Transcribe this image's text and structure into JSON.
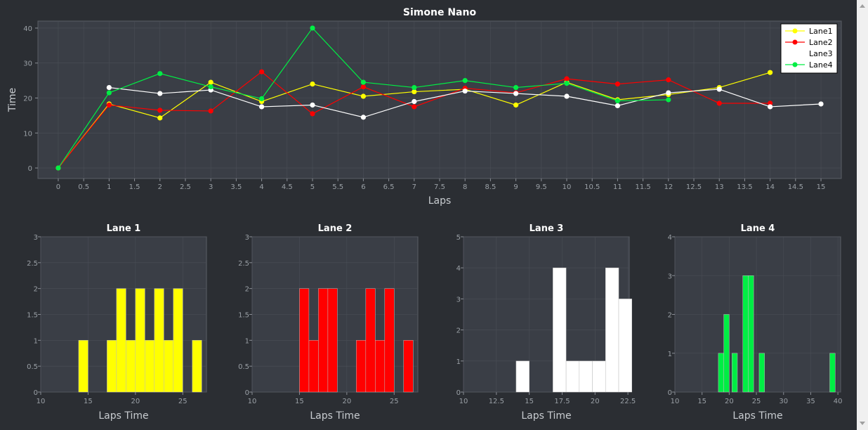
{
  "colors": {
    "background": "#2b2e33",
    "plot_area": "#3a3e46",
    "grid": "#4a4e56",
    "lane1": "#ffff00",
    "lane2": "#ff0000",
    "lane3": "#ffffff",
    "lane4": "#00ee44"
  },
  "chart_data": [
    {
      "type": "line",
      "title": "Simone Nano",
      "xlabel": "Laps",
      "ylabel": "Time",
      "xlim": [
        -0.4,
        15.4
      ],
      "ylim": [
        -3,
        42
      ],
      "grid": true,
      "legend_position": "top-right",
      "x_ticks": [
        0,
        0.5,
        1,
        1.5,
        2,
        2.5,
        3,
        3.5,
        4,
        4.5,
        5,
        5.5,
        6,
        6.5,
        7,
        7.5,
        8,
        8.5,
        9,
        9.5,
        10,
        10.5,
        11,
        11.5,
        12,
        12.5,
        13,
        13.5,
        14,
        14.5,
        15
      ],
      "y_ticks": [
        0,
        10,
        20,
        30,
        40
      ],
      "series": [
        {
          "name": "Lane1",
          "color": "#ffff00",
          "x": [
            0,
            1,
            2,
            3,
            4,
            5,
            6,
            7,
            8,
            9,
            10,
            11,
            12,
            13,
            14
          ],
          "y": [
            0,
            18.3,
            14.3,
            24.5,
            19,
            24,
            20.5,
            21.8,
            22.5,
            18,
            24.5,
            19.5,
            21,
            23,
            27.3
          ]
        },
        {
          "name": "Lane2",
          "color": "#ff0000",
          "x": [
            0,
            1,
            2,
            3,
            4,
            5,
            6,
            7,
            8,
            9,
            10,
            11,
            12,
            13,
            14
          ],
          "y": [
            0,
            18,
            16.5,
            16.3,
            27.5,
            15.5,
            23.2,
            17.5,
            22.8,
            21.5,
            25.5,
            24,
            25.2,
            18.5,
            18.5
          ]
        },
        {
          "name": "Lane3",
          "color": "#ffffff",
          "x": [
            1,
            2,
            3,
            4,
            5,
            6,
            7,
            8,
            9,
            10,
            11,
            12,
            13,
            14,
            15
          ],
          "y": [
            23,
            21.3,
            22.3,
            17.5,
            18,
            14.5,
            19,
            22,
            21.3,
            20.5,
            17.8,
            21.5,
            22.5,
            17.5,
            18.3
          ]
        },
        {
          "name": "Lane4",
          "color": "#00ee44",
          "x": [
            0,
            1,
            2,
            3,
            4,
            5,
            6,
            7,
            8,
            9,
            10,
            11,
            12
          ],
          "y": [
            0,
            21.5,
            27,
            23.2,
            19.8,
            40,
            24.5,
            23,
            25,
            23,
            24.2,
            19.2,
            19.5
          ]
        }
      ]
    },
    {
      "type": "bar",
      "title": "Lane 1",
      "xlabel": "Laps Time",
      "color": "#ffff00",
      "xlim": [
        10,
        27.5
      ],
      "ylim": [
        0,
        3
      ],
      "x_ticks": [
        10,
        15,
        20,
        25
      ],
      "y_ticks": [
        0,
        0.5,
        1,
        1.5,
        2,
        2.5,
        3
      ],
      "bins": [
        [
          14,
          15,
          1
        ],
        [
          17,
          18,
          1
        ],
        [
          18,
          19,
          2
        ],
        [
          19,
          20,
          1
        ],
        [
          20,
          21,
          2
        ],
        [
          21,
          22,
          1
        ],
        [
          22,
          23,
          2
        ],
        [
          23,
          24,
          1
        ],
        [
          24,
          25,
          2
        ],
        [
          26,
          27,
          1
        ]
      ]
    },
    {
      "type": "bar",
      "title": "Lane 2",
      "xlabel": "Laps Time",
      "color": "#ff0000",
      "xlim": [
        10,
        27.5
      ],
      "ylim": [
        0,
        3
      ],
      "x_ticks": [
        10,
        15,
        20,
        25
      ],
      "y_ticks": [
        0,
        0.5,
        1,
        1.5,
        2,
        2.5,
        3
      ],
      "bins": [
        [
          15,
          16,
          2
        ],
        [
          16,
          17,
          1
        ],
        [
          17,
          18,
          2
        ],
        [
          18,
          19,
          2
        ],
        [
          21,
          22,
          1
        ],
        [
          22,
          23,
          2
        ],
        [
          23,
          24,
          1
        ],
        [
          24,
          25,
          2
        ],
        [
          26,
          27,
          1
        ]
      ]
    },
    {
      "type": "bar",
      "title": "Lane 3",
      "xlabel": "Laps Time",
      "color": "#ffffff",
      "xlim": [
        10,
        22.6
      ],
      "ylim": [
        0,
        5
      ],
      "x_ticks": [
        10,
        12.5,
        15,
        17.5,
        20,
        22.5
      ],
      "y_ticks": [
        0,
        1,
        2,
        3,
        4,
        5
      ],
      "bins": [
        [
          14,
          15,
          1
        ],
        [
          16.8,
          17.8,
          4
        ],
        [
          17.8,
          18.8,
          1
        ],
        [
          18.8,
          19.8,
          1
        ],
        [
          19.8,
          20.8,
          1
        ],
        [
          20.8,
          21.8,
          4
        ],
        [
          21.8,
          22.8,
          3
        ]
      ]
    },
    {
      "type": "bar",
      "title": "Lane 4",
      "xlabel": "Laps Time",
      "color": "#00ee44",
      "xlim": [
        10,
        40.5
      ],
      "ylim": [
        0,
        4
      ],
      "x_ticks": [
        10,
        15,
        20,
        25,
        30,
        35,
        40
      ],
      "y_ticks": [
        0,
        1,
        2,
        3,
        4
      ],
      "bins": [
        [
          18,
          19,
          1
        ],
        [
          19,
          20,
          2
        ],
        [
          20.5,
          21.5,
          1
        ],
        [
          22.5,
          23.5,
          3
        ],
        [
          23.5,
          24.5,
          3
        ],
        [
          25.5,
          26.5,
          1
        ],
        [
          38.5,
          39.5,
          1
        ]
      ]
    }
  ]
}
